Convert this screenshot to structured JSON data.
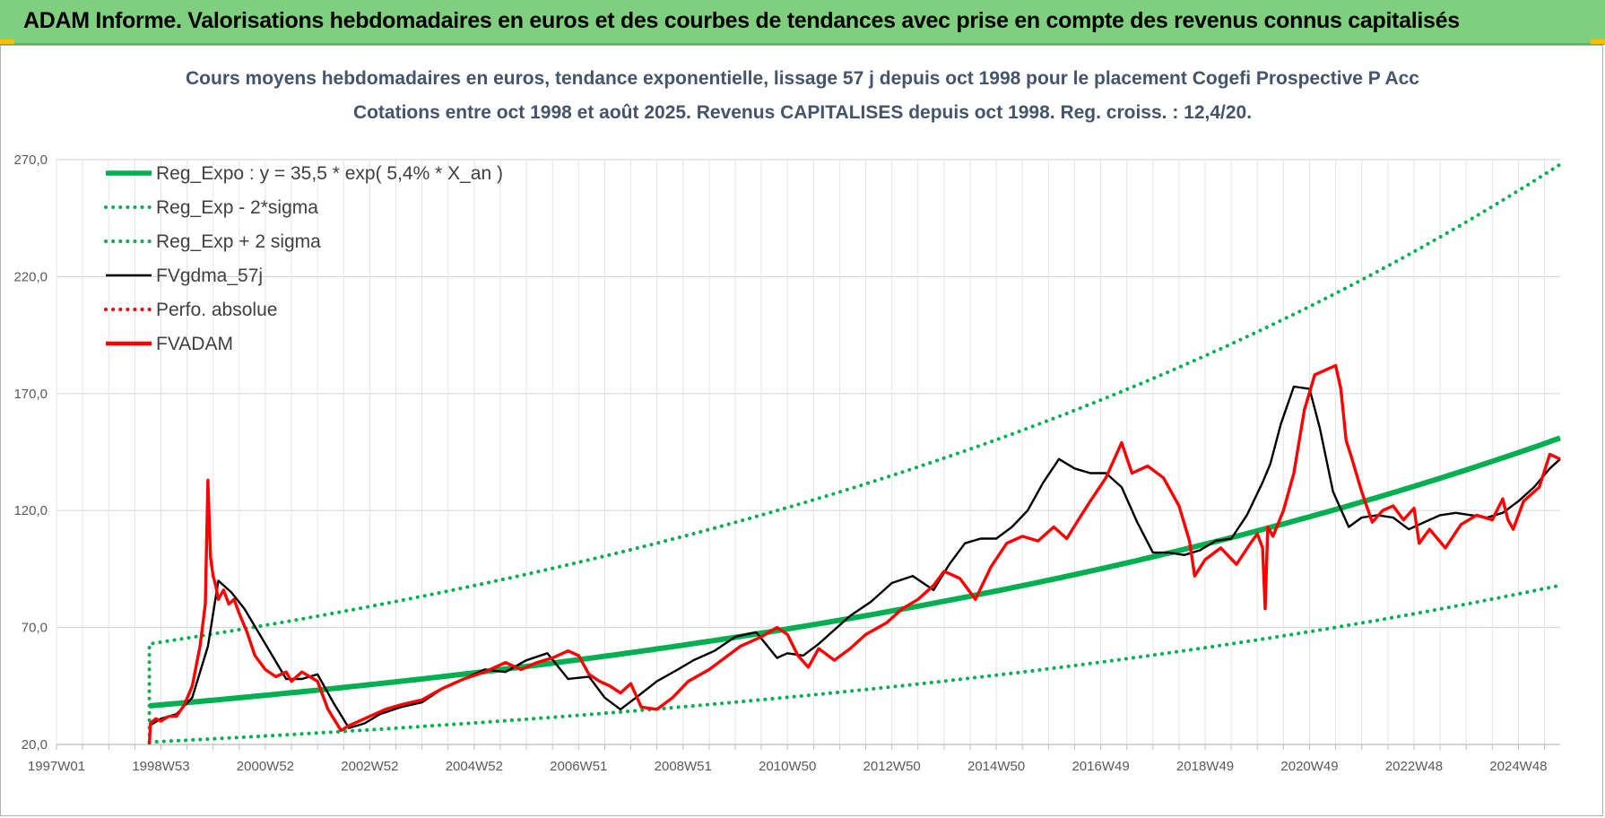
{
  "header": {
    "title": "ADAM Informe. Valorisations hebdomadaires en euros et des courbes de tendances avec prise en compte des revenus connus capitalisés"
  },
  "colors": {
    "header_bg": "#7fcf7f",
    "trend_green": "#00b050",
    "fvadam_red": "#ff0000",
    "smoothed_black": "#000000",
    "grid": "#d9d9d9",
    "title_text": "#44546a"
  },
  "chart_data": {
    "type": "line",
    "title": "Cours moyens hebdomadaires en euros, tendance exponentielle, lissage 57 j depuis oct 1998 pour le placement Cogefi Prospective P Acc",
    "subtitle": "Cotations entre oct 1998 et août 2025.  Revenus CAPITALISES  depuis oct 1998.  Reg. croiss. : 12,4/20.",
    "xlabel": "",
    "ylabel": "",
    "ylim": [
      20,
      270
    ],
    "yticks": [
      "20,0",
      "70,0",
      "120,0",
      "170,0",
      "220,0",
      "270,0"
    ],
    "yticks_values": [
      20,
      70,
      120,
      170,
      220,
      270
    ],
    "xlim": [
      1997.0,
      2025.8
    ],
    "xticks": [
      "1997W01",
      "1998W53",
      "2000W52",
      "2002W52",
      "2004W52",
      "2006W51",
      "2008W51",
      "2010W50",
      "2012W50",
      "2014W50",
      "2016W49",
      "2018W49",
      "2020W49",
      "2022W48",
      "2024W48"
    ],
    "xticks_values": [
      1997.0,
      1999.0,
      2001.0,
      2003.0,
      2005.0,
      2007.0,
      2009.0,
      2011.0,
      2013.0,
      2015.0,
      2017.0,
      2019.0,
      2021.0,
      2023.0,
      2025.0
    ],
    "grid": true,
    "legend_position": "top-left",
    "series": [
      {
        "name": "Reg_Expo : y = 35,5 * exp( 5,4% *  X_an )",
        "style": "solid-thick",
        "color": "#00b050",
        "x": [
          1998.78,
          2001,
          2003,
          2005,
          2007,
          2009,
          2011,
          2013,
          2015,
          2017,
          2019,
          2021,
          2023,
          2025.8
        ],
        "values": [
          36.5,
          41.5,
          46.3,
          51.5,
          57.4,
          63.9,
          71.1,
          79.2,
          88.2,
          98.2,
          109.3,
          121.7,
          135.5,
          151.0
        ]
      },
      {
        "name": "Reg_Exp - 2*sigma",
        "style": "dotted",
        "color": "#00b050",
        "x": [
          1998.78,
          2001,
          2003,
          2005,
          2007,
          2009,
          2011,
          2013,
          2015,
          2017,
          2019,
          2021,
          2023,
          2025.8
        ],
        "values": [
          21.0,
          24.5,
          28.0,
          31.5,
          35.3,
          39.5,
          44.0,
          49.0,
          54.5,
          60.0,
          66.0,
          72.5,
          79.5,
          88.0
        ]
      },
      {
        "name": "Reg_Exp + 2 sigma",
        "style": "dotted",
        "color": "#00b050",
        "x": [
          1998.78,
          2001,
          2003,
          2005,
          2007,
          2009,
          2011,
          2013,
          2015,
          2017,
          2019,
          2021,
          2023,
          2025.8
        ],
        "values": [
          63.0,
          70.0,
          79.0,
          89.0,
          100.0,
          112.0,
          125.5,
          140.5,
          157.5,
          176.5,
          197.0,
          220.0,
          236.5,
          268.0
        ]
      },
      {
        "name": "FVgdma_57j",
        "style": "solid",
        "color": "#000000",
        "x": [
          1998.78,
          1999.0,
          1999.3,
          1999.6,
          1999.9,
          2000.1,
          2000.35,
          2000.6,
          2001.0,
          2001.4,
          2001.7,
          2002.0,
          2002.3,
          2002.6,
          2002.9,
          2003.2,
          2003.6,
          2004.0,
          2004.4,
          2004.8,
          2005.2,
          2005.6,
          2006.0,
          2006.4,
          2006.8,
          2007.2,
          2007.5,
          2007.8,
          2008.1,
          2008.5,
          2008.9,
          2009.2,
          2009.6,
          2010.0,
          2010.4,
          2010.8,
          2011.0,
          2011.3,
          2011.6,
          2011.9,
          2012.2,
          2012.6,
          2013.0,
          2013.4,
          2013.8,
          2014.1,
          2014.4,
          2014.7,
          2015.0,
          2015.3,
          2015.6,
          2015.9,
          2016.2,
          2016.5,
          2016.8,
          2017.1,
          2017.4,
          2017.7,
          2018.0,
          2018.3,
          2018.6,
          2018.9,
          2019.2,
          2019.5,
          2019.8,
          2020.1,
          2020.25,
          2020.45,
          2020.7,
          2021.0,
          2021.2,
          2021.45,
          2021.75,
          2022.0,
          2022.3,
          2022.6,
          2022.9,
          2023.2,
          2023.5,
          2023.8,
          2024.1,
          2024.4,
          2024.7,
          2025.0,
          2025.3,
          2025.6,
          2025.8
        ],
        "values": [
          28,
          31,
          33,
          40,
          62,
          90,
          85,
          78,
          63,
          48,
          48,
          50,
          38,
          27,
          29,
          33,
          36,
          38,
          44,
          48,
          52,
          51,
          56,
          59,
          48,
          49,
          40,
          35,
          40,
          47,
          52,
          56,
          60,
          66,
          68,
          57,
          59,
          58,
          63,
          69,
          75,
          81,
          89,
          92,
          86,
          97,
          106,
          108,
          108,
          113,
          120,
          132,
          142,
          138,
          136,
          136,
          130,
          115,
          102,
          102,
          101,
          103,
          107,
          108,
          118,
          132,
          140,
          157,
          173,
          172,
          155,
          128,
          113,
          117,
          118,
          117,
          112,
          115,
          118,
          119,
          118,
          117,
          119,
          124,
          130,
          138,
          142
        ]
      },
      {
        "name": "Perfo. absolue",
        "style": "dotted",
        "color": "#ff0000",
        "x": [],
        "values": []
      },
      {
        "name": "FVADAM",
        "style": "solid-thick",
        "color": "#ff0000",
        "x": [
          1998.78,
          1998.8,
          1998.9,
          1999.0,
          1999.15,
          1999.3,
          1999.45,
          1999.6,
          1999.75,
          1999.85,
          1999.9,
          1999.95,
          2000.0,
          2000.05,
          2000.1,
          2000.2,
          2000.3,
          2000.4,
          2000.5,
          2000.65,
          2000.8,
          2001.0,
          2001.2,
          2001.4,
          2001.5,
          2001.7,
          2002.0,
          2002.2,
          2002.45,
          2002.6,
          2002.8,
          2003.0,
          2003.3,
          2003.6,
          2004.0,
          2004.4,
          2004.8,
          2005.2,
          2005.6,
          2005.9,
          2006.2,
          2006.5,
          2006.8,
          2007.0,
          2007.2,
          2007.4,
          2007.6,
          2007.8,
          2008.0,
          2008.2,
          2008.5,
          2008.8,
          2009.1,
          2009.5,
          2009.8,
          2010.1,
          2010.5,
          2010.8,
          2011.0,
          2011.2,
          2011.4,
          2011.6,
          2011.9,
          2012.2,
          2012.5,
          2012.9,
          2013.2,
          2013.5,
          2013.8,
          2014.0,
          2014.1,
          2014.3,
          2014.6,
          2014.9,
          2015.2,
          2015.5,
          2015.8,
          2016.1,
          2016.35,
          2016.6,
          2016.8,
          2017.1,
          2017.4,
          2017.6,
          2017.9,
          2018.2,
          2018.5,
          2018.7,
          2018.8,
          2019.0,
          2019.3,
          2019.6,
          2019.9,
          2020.0,
          2020.1,
          2020.15,
          2020.2,
          2020.3,
          2020.5,
          2020.7,
          2020.9,
          2021.1,
          2021.3,
          2021.5,
          2021.6,
          2021.7,
          2021.8,
          2022.0,
          2022.2,
          2022.4,
          2022.6,
          2022.8,
          2023.0,
          2023.1,
          2023.3,
          2023.6,
          2023.9,
          2024.2,
          2024.5,
          2024.7,
          2024.8,
          2024.9,
          2025.1,
          2025.4,
          2025.6,
          2025.8
        ],
        "values": [
          20,
          29,
          31,
          30,
          32,
          32,
          37,
          45,
          62,
          80,
          133,
          100,
          92,
          88,
          82,
          86,
          80,
          82,
          76,
          68,
          58,
          52,
          49,
          51,
          47,
          51,
          47,
          35,
          26,
          28,
          30,
          32,
          35,
          37,
          39,
          44,
          48,
          51,
          55,
          52,
          55,
          57,
          60,
          58,
          50,
          47,
          45,
          42,
          46,
          36,
          35,
          40,
          47,
          52,
          57,
          62,
          66,
          70,
          67,
          58,
          53,
          61,
          56,
          61,
          67,
          72,
          78,
          82,
          88,
          94,
          93,
          91,
          82,
          96,
          106,
          109,
          107,
          113,
          108,
          117,
          124,
          134,
          149,
          136,
          139,
          134,
          122,
          107,
          92,
          99,
          104,
          97,
          107,
          110,
          104,
          78,
          113,
          109,
          120,
          136,
          163,
          178,
          180,
          182,
          172,
          150,
          143,
          128,
          115,
          120,
          122,
          116,
          121,
          106,
          112,
          104,
          114,
          118,
          116,
          125,
          116,
          112,
          124,
          130,
          144,
          142
        ]
      }
    ]
  }
}
